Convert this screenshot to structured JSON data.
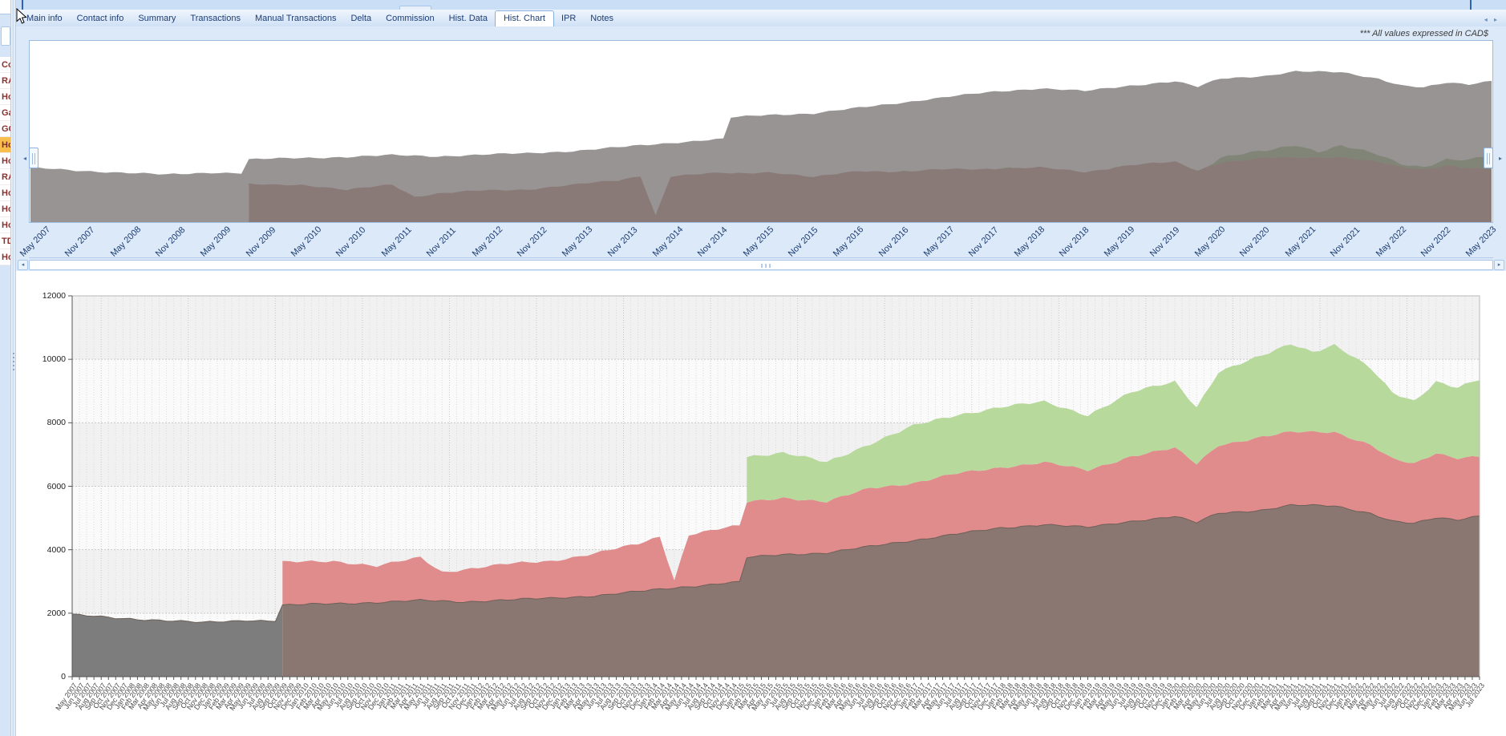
{
  "window": {
    "note": "*** All values expressed in CAD$"
  },
  "tabs": {
    "items": [
      "Main info",
      "Contact info",
      "Summary",
      "Transactions",
      "Manual Transactions",
      "Delta",
      "Commission",
      "Hist. Data",
      "Hist. Chart",
      "IPR",
      "Notes"
    ],
    "selected": "Hist. Chart",
    "scroll_arrows": "◂ ▸"
  },
  "sidebar": {
    "items": [
      "Co",
      "RA",
      "Ho",
      "Ga",
      "GO",
      "Ho",
      "Ho",
      "RA",
      "Ho",
      "Ho",
      "Ho",
      "TD",
      "Ho"
    ],
    "highlight_index": 5,
    "highlight_color": "#f9bf4e",
    "text_color": "#8b3030"
  },
  "navigator": {
    "x_labels": [
      "May 2007",
      "Nov 2007",
      "May 2008",
      "Nov 2008",
      "May 2009",
      "Nov 2009",
      "May 2010",
      "Nov 2010",
      "May 2011",
      "Nov 2011",
      "May 2012",
      "Nov 2012",
      "May 2013",
      "Nov 2013",
      "May 2014",
      "Nov 2014",
      "May 2015",
      "Nov 2015",
      "May 2016",
      "Nov 2016",
      "May 2017",
      "Nov 2017",
      "May 2018",
      "Nov 2018",
      "May 2019",
      "Nov 2019",
      "May 2020",
      "Nov 2020",
      "May 2021",
      "Nov 2021",
      "May 2022",
      "Nov 2022",
      "May 2023"
    ],
    "left_arrow": "◂",
    "right_arrow": "▸",
    "gray_overlay": "rgba(125,121,120,0.8)",
    "red_band_color": "#bd7d76",
    "green_band_color": "#8fb573",
    "value_max": 6100
  },
  "scrollbar": {
    "left_arrow": "◂",
    "right_arrow": "▸"
  },
  "chart_data": {
    "type": "area",
    "title": "",
    "xlabel": "",
    "ylabel": "",
    "x_start": "2007-05",
    "x_end": "2023-07",
    "x_step": "month",
    "ylim": [
      0,
      12000
    ],
    "y_ticks": [
      0,
      2000,
      4000,
      6000,
      8000,
      10000,
      12000
    ],
    "grid": true,
    "legend": "none",
    "note": "stacked area chart; series values are cumulative stack tops read from the axis",
    "series": [
      {
        "name": "account-1-gray",
        "color": "#7d7d7d",
        "color_after_overlap": "#8a7772",
        "start": "2007-05",
        "keypoints": [
          [
            "2007-05",
            1950
          ],
          [
            "2007-11",
            1850
          ],
          [
            "2008-05",
            1780
          ],
          [
            "2008-11",
            1700
          ],
          [
            "2009-05",
            1780
          ],
          [
            "2009-09",
            1760
          ],
          [
            "2009-10",
            2250
          ],
          [
            "2010-05",
            2300
          ],
          [
            "2010-11",
            2340
          ],
          [
            "2011-05",
            2400
          ],
          [
            "2011-11",
            2360
          ],
          [
            "2012-05",
            2420
          ],
          [
            "2012-11",
            2470
          ],
          [
            "2013-05",
            2550
          ],
          [
            "2013-11",
            2680
          ],
          [
            "2014-05",
            2820
          ],
          [
            "2014-11",
            2950
          ],
          [
            "2015-01",
            2980
          ],
          [
            "2015-02",
            3750
          ],
          [
            "2015-07",
            3850
          ],
          [
            "2016-01",
            3900
          ],
          [
            "2016-07",
            4100
          ],
          [
            "2017-01",
            4300
          ],
          [
            "2017-07",
            4500
          ],
          [
            "2018-01",
            4680
          ],
          [
            "2018-07",
            4800
          ],
          [
            "2019-01",
            4700
          ],
          [
            "2019-07",
            4900
          ],
          [
            "2020-01",
            5050
          ],
          [
            "2020-04",
            4850
          ],
          [
            "2020-07",
            5150
          ],
          [
            "2021-01",
            5250
          ],
          [
            "2021-05",
            5400
          ],
          [
            "2021-11",
            5380
          ],
          [
            "2022-04",
            5150
          ],
          [
            "2022-07",
            4900
          ],
          [
            "2022-10",
            4820
          ],
          [
            "2023-01",
            5000
          ],
          [
            "2023-04",
            4950
          ],
          [
            "2023-07",
            5080
          ]
        ]
      },
      {
        "name": "account-2-red",
        "color": "#e18c8c",
        "start": "2009-10",
        "keypoints": [
          [
            "2009-10",
            3600
          ],
          [
            "2010-05",
            3650
          ],
          [
            "2010-11",
            3480
          ],
          [
            "2011-05",
            3760
          ],
          [
            "2011-08",
            3300
          ],
          [
            "2011-11",
            3380
          ],
          [
            "2012-05",
            3550
          ],
          [
            "2012-11",
            3650
          ],
          [
            "2013-05",
            3880
          ],
          [
            "2013-11",
            4180
          ],
          [
            "2014-02",
            4420
          ],
          [
            "2014-04",
            3050
          ],
          [
            "2014-06",
            4480
          ],
          [
            "2014-11",
            4680
          ],
          [
            "2015-01",
            4750
          ],
          [
            "2015-02",
            5500
          ],
          [
            "2015-07",
            5650
          ],
          [
            "2016-01",
            5500
          ],
          [
            "2016-07",
            5950
          ],
          [
            "2017-01",
            6100
          ],
          [
            "2017-07",
            6400
          ],
          [
            "2018-01",
            6600
          ],
          [
            "2018-07",
            6750
          ],
          [
            "2019-01",
            6500
          ],
          [
            "2019-07",
            6950
          ],
          [
            "2020-01",
            7200
          ],
          [
            "2020-04",
            6700
          ],
          [
            "2020-07",
            7300
          ],
          [
            "2021-01",
            7550
          ],
          [
            "2021-05",
            7700
          ],
          [
            "2021-11",
            7720
          ],
          [
            "2022-04",
            7300
          ],
          [
            "2022-07",
            6850
          ],
          [
            "2022-10",
            6700
          ],
          [
            "2023-01",
            7050
          ],
          [
            "2023-04",
            6900
          ],
          [
            "2023-07",
            6950
          ]
        ]
      },
      {
        "name": "account-3-green",
        "color": "#b8d99c",
        "start": "2015-02",
        "keypoints": [
          [
            "2015-02",
            6950
          ],
          [
            "2015-07",
            7050
          ],
          [
            "2016-01",
            6750
          ],
          [
            "2016-07",
            7350
          ],
          [
            "2017-01",
            7900
          ],
          [
            "2017-07",
            8250
          ],
          [
            "2018-01",
            8500
          ],
          [
            "2018-07",
            8650
          ],
          [
            "2019-01",
            8250
          ],
          [
            "2019-07",
            8950
          ],
          [
            "2020-01",
            9300
          ],
          [
            "2020-04",
            8500
          ],
          [
            "2020-07",
            9600
          ],
          [
            "2021-01",
            10100
          ],
          [
            "2021-05",
            10500
          ],
          [
            "2021-08",
            10250
          ],
          [
            "2021-11",
            10450
          ],
          [
            "2022-04",
            9700
          ],
          [
            "2022-07",
            8950
          ],
          [
            "2022-10",
            8700
          ],
          [
            "2023-01",
            9300
          ],
          [
            "2023-04",
            9100
          ],
          [
            "2023-07",
            9350
          ]
        ]
      }
    ],
    "plot_bg_band_a": "#f1f1f1",
    "plot_bg_band_b": "#fafafa"
  }
}
